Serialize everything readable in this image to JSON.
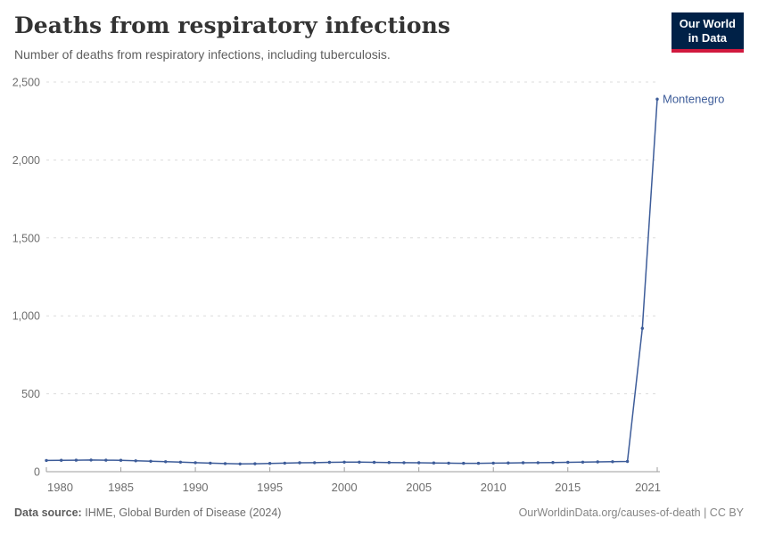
{
  "header": {
    "title": "Deaths from respiratory infections",
    "subtitle": "Number of deaths from respiratory infections, including tuberculosis.",
    "logo": {
      "line1": "Our World",
      "line2": "in Data"
    }
  },
  "footer": {
    "datasource_label": "Data source:",
    "datasource_value": "IHME, Global Burden of Disease (2024)",
    "link": "OurWorldinData.org/causes-of-death | CC BY"
  },
  "colors": {
    "series_blue": "#3d5c99",
    "grid": "#dcdcdc",
    "axis": "#9e9e9e",
    "tick_label": "#6e6e6e",
    "logo_bg": "#002147",
    "logo_red": "#d1193e"
  },
  "chart_data": {
    "type": "line",
    "title": "Deaths from respiratory infections",
    "subtitle": "Number of deaths from respiratory infections, including tuberculosis.",
    "xlabel": "",
    "ylabel": "",
    "ylim": [
      0,
      2500
    ],
    "yticks": [
      0,
      500,
      1000,
      1500,
      2000,
      2500
    ],
    "xticks": [
      1980,
      1985,
      1990,
      1995,
      2000,
      2005,
      2010,
      2015,
      2021
    ],
    "grid": "horizontal-dashed",
    "legend_position": "end-of-line",
    "x": [
      1980,
      1981,
      1982,
      1983,
      1984,
      1985,
      1986,
      1987,
      1988,
      1989,
      1990,
      1991,
      1992,
      1993,
      1994,
      1995,
      1996,
      1997,
      1998,
      1999,
      2000,
      2001,
      2002,
      2003,
      2004,
      2005,
      2006,
      2007,
      2008,
      2009,
      2010,
      2011,
      2012,
      2013,
      2014,
      2015,
      2016,
      2017,
      2018,
      2019,
      2020,
      2021
    ],
    "series": [
      {
        "name": "Montenegro",
        "values": [
          72,
          73,
          74,
          75,
          74,
          73,
          70,
          67,
          64,
          61,
          58,
          55,
          52,
          50,
          51,
          53,
          55,
          57,
          58,
          60,
          61,
          61,
          60,
          59,
          58,
          57,
          56,
          55,
          54,
          54,
          55,
          56,
          57,
          58,
          59,
          60,
          61,
          63,
          64,
          66,
          920,
          2390
        ]
      }
    ]
  }
}
